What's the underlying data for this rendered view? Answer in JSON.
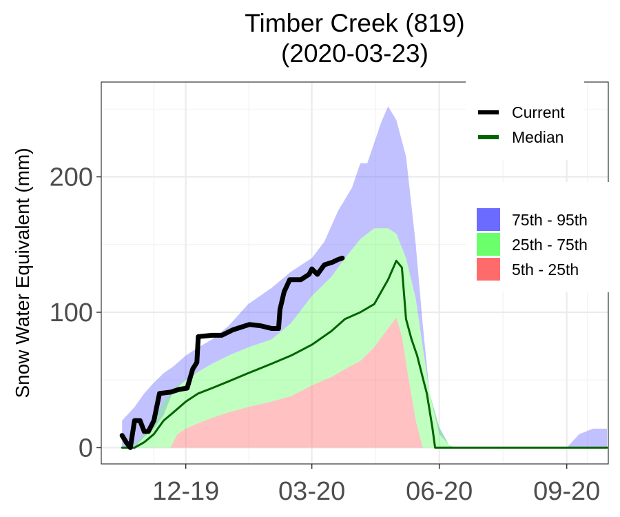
{
  "chart_data": {
    "type": "area",
    "title": "Timber Creek (819)",
    "subtitle": "(2020-03-23)",
    "xlabel": "",
    "ylabel": "Snow Water Equivalent (mm)",
    "xlim": [
      "2019-10-01",
      "2020-10-01"
    ],
    "ylim": [
      -12,
      270
    ],
    "y_ticks": [
      0,
      100,
      200
    ],
    "x_ticks": [
      {
        "date": "2019-12-01",
        "label": "12-19"
      },
      {
        "date": "2020-03-01",
        "label": "03-20"
      },
      {
        "date": "2020-06-01",
        "label": "06-20"
      },
      {
        "date": "2020-09-01",
        "label": "09-20"
      }
    ],
    "grid": true,
    "legend_position": "right",
    "lines": [
      {
        "name": "Current",
        "color": "#000000",
        "points": [
          [
            "2019-10-16",
            9
          ],
          [
            "2019-10-19",
            4
          ],
          [
            "2019-10-22",
            0
          ],
          [
            "2019-10-25",
            20
          ],
          [
            "2019-10-29",
            20
          ],
          [
            "2019-11-01",
            12
          ],
          [
            "2019-11-04",
            12
          ],
          [
            "2019-11-08",
            20
          ],
          [
            "2019-11-12",
            40
          ],
          [
            "2019-11-20",
            41
          ],
          [
            "2019-11-26",
            43
          ],
          [
            "2019-12-02",
            44
          ],
          [
            "2019-12-06",
            58
          ],
          [
            "2019-12-09",
            63
          ],
          [
            "2019-12-10",
            82
          ],
          [
            "2019-12-20",
            83
          ],
          [
            "2019-12-27",
            83
          ],
          [
            "2020-01-04",
            87
          ],
          [
            "2020-01-16",
            91
          ],
          [
            "2020-01-24",
            90
          ],
          [
            "2020-02-01",
            88
          ],
          [
            "2020-02-06",
            88
          ],
          [
            "2020-02-07",
            102
          ],
          [
            "2020-02-10",
            115
          ],
          [
            "2020-02-14",
            124
          ],
          [
            "2020-02-22",
            124
          ],
          [
            "2020-02-28",
            128
          ],
          [
            "2020-03-01",
            132
          ],
          [
            "2020-03-05",
            128
          ],
          [
            "2020-03-10",
            135
          ],
          [
            "2020-03-16",
            137
          ],
          [
            "2020-03-20",
            139
          ],
          [
            "2020-03-23",
            140
          ]
        ]
      },
      {
        "name": "Median",
        "color": "#006400",
        "points": [
          [
            "2019-10-16",
            0
          ],
          [
            "2019-10-25",
            0
          ],
          [
            "2019-11-01",
            4
          ],
          [
            "2019-11-08",
            10
          ],
          [
            "2019-11-15",
            20
          ],
          [
            "2019-11-22",
            26
          ],
          [
            "2019-12-01",
            34
          ],
          [
            "2019-12-10",
            40
          ],
          [
            "2019-12-20",
            44
          ],
          [
            "2020-01-01",
            49
          ],
          [
            "2020-01-15",
            55
          ],
          [
            "2020-02-01",
            62
          ],
          [
            "2020-02-15",
            68
          ],
          [
            "2020-03-01",
            76
          ],
          [
            "2020-03-15",
            86
          ],
          [
            "2020-03-25",
            95
          ],
          [
            "2020-04-05",
            100
          ],
          [
            "2020-04-15",
            106
          ],
          [
            "2020-04-25",
            124
          ],
          [
            "2020-05-01",
            138
          ],
          [
            "2020-05-05",
            133
          ],
          [
            "2020-05-08",
            95
          ],
          [
            "2020-05-12",
            80
          ],
          [
            "2020-05-16",
            68
          ],
          [
            "2020-05-20",
            52
          ],
          [
            "2020-05-23",
            40
          ],
          [
            "2020-05-27",
            15
          ],
          [
            "2020-05-29",
            0
          ],
          [
            "2020-09-30",
            0
          ]
        ]
      }
    ],
    "bands": [
      {
        "name": "75th - 95th",
        "color": "#6b6bff",
        "lower": [
          [
            "2019-10-16",
            0
          ],
          [
            "2019-10-25",
            0
          ],
          [
            "2019-11-01",
            8
          ],
          [
            "2019-11-08",
            14
          ],
          [
            "2019-11-15",
            24
          ],
          [
            "2019-11-22",
            42
          ],
          [
            "2019-12-01",
            50
          ],
          [
            "2019-12-10",
            56
          ],
          [
            "2019-12-20",
            62
          ],
          [
            "2020-01-01",
            68
          ],
          [
            "2020-01-15",
            74
          ],
          [
            "2020-02-01",
            80
          ],
          [
            "2020-02-15",
            92
          ],
          [
            "2020-03-01",
            112
          ],
          [
            "2020-03-15",
            126
          ],
          [
            "2020-03-25",
            140
          ],
          [
            "2020-04-05",
            154
          ],
          [
            "2020-04-15",
            162
          ],
          [
            "2020-04-25",
            162
          ],
          [
            "2020-05-01",
            158
          ],
          [
            "2020-05-08",
            140
          ],
          [
            "2020-05-15",
            110
          ],
          [
            "2020-05-20",
            75
          ],
          [
            "2020-05-25",
            40
          ],
          [
            "2020-06-01",
            15
          ],
          [
            "2020-06-08",
            2
          ],
          [
            "2020-06-12",
            0
          ],
          [
            "2020-09-30",
            0
          ]
        ],
        "upper": [
          [
            "2019-10-16",
            20
          ],
          [
            "2019-10-25",
            30
          ],
          [
            "2019-11-01",
            40
          ],
          [
            "2019-11-08",
            48
          ],
          [
            "2019-11-15",
            55
          ],
          [
            "2019-11-22",
            60
          ],
          [
            "2019-12-01",
            68
          ],
          [
            "2019-12-10",
            74
          ],
          [
            "2019-12-20",
            80
          ],
          [
            "2020-01-01",
            90
          ],
          [
            "2020-01-15",
            106
          ],
          [
            "2020-02-01",
            118
          ],
          [
            "2020-02-15",
            130
          ],
          [
            "2020-03-01",
            140
          ],
          [
            "2020-03-10",
            152
          ],
          [
            "2020-03-20",
            175
          ],
          [
            "2020-03-30",
            192
          ],
          [
            "2020-04-05",
            210
          ],
          [
            "2020-04-10",
            210
          ],
          [
            "2020-04-20",
            240
          ],
          [
            "2020-04-25",
            252
          ],
          [
            "2020-05-01",
            242
          ],
          [
            "2020-05-08",
            215
          ],
          [
            "2020-05-15",
            150
          ],
          [
            "2020-05-20",
            92
          ],
          [
            "2020-05-25",
            40
          ],
          [
            "2020-06-01",
            10
          ],
          [
            "2020-06-10",
            0
          ],
          [
            "2020-09-01",
            0
          ],
          [
            "2020-09-10",
            10
          ],
          [
            "2020-09-20",
            14
          ],
          [
            "2020-09-30",
            14
          ]
        ]
      },
      {
        "name": "25th - 75th",
        "color": "#6bff6b",
        "lower": [
          [
            "2019-10-16",
            0
          ],
          [
            "2019-11-20",
            0
          ],
          [
            "2019-11-25",
            10
          ],
          [
            "2019-12-01",
            14
          ],
          [
            "2019-12-10",
            18
          ],
          [
            "2019-12-20",
            22
          ],
          [
            "2020-01-01",
            26
          ],
          [
            "2020-01-15",
            30
          ],
          [
            "2020-02-01",
            34
          ],
          [
            "2020-02-15",
            38
          ],
          [
            "2020-03-01",
            46
          ],
          [
            "2020-03-15",
            52
          ],
          [
            "2020-03-25",
            58
          ],
          [
            "2020-04-05",
            64
          ],
          [
            "2020-04-15",
            74
          ],
          [
            "2020-04-25",
            88
          ],
          [
            "2020-05-01",
            96
          ],
          [
            "2020-05-05",
            82
          ],
          [
            "2020-05-10",
            50
          ],
          [
            "2020-05-15",
            20
          ],
          [
            "2020-05-20",
            0
          ],
          [
            "2020-09-30",
            0
          ]
        ],
        "upper": [
          [
            "2019-10-16",
            0
          ],
          [
            "2019-10-25",
            2
          ],
          [
            "2019-11-01",
            10
          ],
          [
            "2019-11-08",
            20
          ],
          [
            "2019-11-15",
            34
          ],
          [
            "2019-11-22",
            44
          ],
          [
            "2019-12-01",
            50
          ],
          [
            "2019-12-10",
            56
          ],
          [
            "2019-12-20",
            62
          ],
          [
            "2020-01-01",
            68
          ],
          [
            "2020-01-15",
            74
          ],
          [
            "2020-02-01",
            80
          ],
          [
            "2020-02-15",
            92
          ],
          [
            "2020-03-01",
            112
          ],
          [
            "2020-03-15",
            126
          ],
          [
            "2020-03-25",
            140
          ],
          [
            "2020-04-05",
            154
          ],
          [
            "2020-04-15",
            162
          ],
          [
            "2020-04-25",
            162
          ],
          [
            "2020-05-01",
            158
          ],
          [
            "2020-05-08",
            140
          ],
          [
            "2020-05-15",
            110
          ],
          [
            "2020-05-20",
            75
          ],
          [
            "2020-05-25",
            40
          ],
          [
            "2020-06-01",
            15
          ],
          [
            "2020-06-08",
            2
          ],
          [
            "2020-06-12",
            0
          ],
          [
            "2020-09-30",
            0
          ]
        ]
      },
      {
        "name": "5th - 25th",
        "color": "#ff6b6b",
        "lower": [
          [
            "2019-11-20",
            0
          ],
          [
            "2020-05-20",
            0
          ]
        ],
        "upper": [
          [
            "2019-11-20",
            0
          ],
          [
            "2019-11-25",
            10
          ],
          [
            "2019-12-01",
            14
          ],
          [
            "2019-12-10",
            18
          ],
          [
            "2019-12-20",
            22
          ],
          [
            "2020-01-01",
            26
          ],
          [
            "2020-01-15",
            30
          ],
          [
            "2020-02-01",
            34
          ],
          [
            "2020-02-15",
            38
          ],
          [
            "2020-03-01",
            46
          ],
          [
            "2020-03-15",
            52
          ],
          [
            "2020-03-25",
            58
          ],
          [
            "2020-04-05",
            64
          ],
          [
            "2020-04-15",
            74
          ],
          [
            "2020-04-25",
            88
          ],
          [
            "2020-05-01",
            96
          ],
          [
            "2020-05-05",
            82
          ],
          [
            "2020-05-10",
            50
          ],
          [
            "2020-05-15",
            20
          ],
          [
            "2020-05-20",
            0
          ]
        ]
      }
    ]
  }
}
